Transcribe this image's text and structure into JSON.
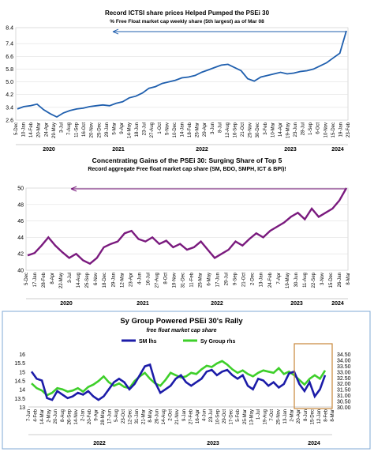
{
  "chart_data": [
    {
      "type": "line",
      "title": "Record ICTSI share prices Helped Pumped the PSEi 30",
      "subtitle": "% Free Float market cap weekly share (5th largest) as of Mar 08",
      "xlabel": "",
      "ylabel": "",
      "ylim": [
        2.6,
        8.4
      ],
      "yticks": [
        "2.6",
        "3.4",
        "4.2",
        "5.0",
        "5.8",
        "6.6",
        "7.4",
        "8.4"
      ],
      "x_ticks": [
        "5-Dec",
        "10-Jan",
        "14-Feb",
        "20-Mar",
        "24-Apr",
        "29-May",
        "3-Jul",
        "7-Aug",
        "11-Sep",
        "16-Oct",
        "20-Nov",
        "25-Dec",
        "29-Jan",
        "5-Mar",
        "9-Apr",
        "14-May",
        "18-Jun",
        "23-Jul",
        "27-Aug",
        "1-Oct",
        "5-Nov",
        "10-Dec",
        "14-Jan",
        "18-Feb",
        "25-Mar",
        "29-Apr",
        "3-Jun",
        "8-Jul",
        "12-Aug",
        "16-Sep",
        "21-Oct",
        "25-Nov",
        "30-Dec",
        "3-Feb",
        "10-Mar",
        "14-Apr",
        "19-May",
        "23-Jun",
        "28-Jul",
        "1-Sep",
        "6-Oct",
        "10-Nov",
        "15-Dec",
        "19-Jan",
        "23-Feb"
      ],
      "years": [
        "2020",
        "2021",
        "2022",
        "2023",
        "2024"
      ],
      "color": "#1f5fae",
      "values": [
        3.3,
        3.45,
        3.5,
        3.6,
        3.25,
        3.0,
        2.8,
        3.05,
        3.2,
        3.3,
        3.35,
        3.45,
        3.5,
        3.55,
        3.5,
        3.65,
        3.75,
        4.0,
        4.1,
        4.3,
        4.6,
        4.7,
        4.9,
        5.0,
        5.1,
        5.25,
        5.3,
        5.4,
        5.6,
        5.75,
        5.9,
        6.05,
        6.1,
        5.9,
        5.7,
        5.2,
        5.05,
        5.3,
        5.4,
        5.5,
        5.6,
        5.5,
        5.55,
        5.65,
        5.7,
        5.8,
        6.0,
        6.2,
        6.5,
        6.8,
        8.2
      ],
      "arrow": true
    },
    {
      "type": "line",
      "title": "Concentrating Gains of the PSEi 30: Surging Share of Top 5",
      "subtitle": "Record aggregate Free float market cap share (SM, BDO, SMPH, ICT & BPI)!",
      "xlabel": "",
      "ylabel": "",
      "ylim": [
        40,
        50
      ],
      "yticks": [
        "40",
        "42",
        "44",
        "46",
        "48",
        "50"
      ],
      "x_ticks": [
        "5-Dec",
        "17-Jan",
        "28-Feb",
        "8-Apr",
        "22-May",
        "3-Jul",
        "14-Aug",
        "25-Sep",
        "6-Nov",
        "18-Dec",
        "29-Jan",
        "12-Mar",
        "23-Apr",
        "4-Jun",
        "16-Jul",
        "27-Aug",
        "8-Oct",
        "19-Nov",
        "31-Dec",
        "11-Feb",
        "25-Mar",
        "6-May",
        "17-Jun",
        "29-Jul",
        "9-Sep",
        "21-Oct",
        "2-Dec",
        "13-Jan",
        "24-Feb",
        "7-Apr",
        "19-May",
        "30-Jun",
        "11-Aug",
        "22-Sep",
        "3-Nov",
        "15-Dec",
        "26-Jan",
        "8-Mar"
      ],
      "years": [
        "2020",
        "2021",
        "2022",
        "2023",
        "2024"
      ],
      "color": "#7a1a7e",
      "values": [
        41.8,
        42.1,
        43.0,
        44.0,
        43.0,
        42.2,
        41.5,
        42.0,
        41.2,
        40.8,
        41.5,
        42.8,
        43.2,
        43.5,
        44.5,
        44.8,
        43.8,
        43.5,
        44.0,
        43.2,
        43.6,
        42.8,
        43.2,
        42.5,
        42.8,
        43.5,
        42.5,
        41.5,
        42.0,
        42.5,
        43.5,
        43.0,
        43.8,
        44.5,
        44.0,
        44.8,
        45.3,
        45.8,
        46.5,
        47.0,
        46.2,
        47.5,
        46.5,
        47.0,
        47.5,
        48.5,
        50.0
      ],
      "arrow": true
    },
    {
      "type": "line",
      "title": "Sy Group Powered PSEi 30's Rally",
      "subtitle": "free float market cap share",
      "xlabel": "",
      "ylabel": "",
      "ylim": [
        13,
        16
      ],
      "yticks": [
        "13",
        "13.5",
        "14",
        "14.5",
        "15",
        "15.5",
        "16"
      ],
      "ylim_right": [
        30,
        34.5
      ],
      "yticks_right": [
        "30.00",
        "30.50",
        "31.00",
        "31.50",
        "32.00",
        "32.50",
        "33.00",
        "33.50",
        "34.00",
        "34.50"
      ],
      "x_ticks": [
        "7-Jun",
        "4-Feb",
        "14-Mar",
        "2-May",
        "20-Jun",
        "8-Aug",
        "26-Sep",
        "14-Nov",
        "2-Jan",
        "20-Feb",
        "9-Apr",
        "28-May",
        "17-Jun",
        "5-Aug",
        "23-Oct",
        "12-Dec",
        "31-Jan",
        "21-Mar",
        "8-May",
        "26-Jun",
        "14-Aug",
        "2-Oct",
        "21-Nov",
        "9-Jan",
        "27-Feb",
        "16-Apr",
        "4-Jun",
        "23-Jul",
        "10-Sep",
        "29-Oct",
        "17-Dec",
        "5-Feb",
        "25-Mar",
        "13-May",
        "1-Jul",
        "19-Aug",
        "7-Oct",
        "25-Nov",
        "13-Jan",
        "2-Mar",
        "20-Apr",
        "8-Jun",
        "15-Dec",
        "12-Jan",
        "8-Feb",
        "8-Mar"
      ],
      "years": [
        "2022",
        "2023",
        "2024"
      ],
      "series": [
        {
          "name": "SM lhs",
          "axis": "left",
          "color": "#1c1ca8",
          "values": [
            15.0,
            14.6,
            14.5,
            13.5,
            13.4,
            13.9,
            13.7,
            13.5,
            13.6,
            13.8,
            13.7,
            13.9,
            13.6,
            13.4,
            13.6,
            14.0,
            14.4,
            14.6,
            14.4,
            14.0,
            14.3,
            14.8,
            15.3,
            15.4,
            14.4,
            13.8,
            14.0,
            14.2,
            14.6,
            14.8,
            14.4,
            14.2,
            14.4,
            14.6,
            15.0,
            15.1,
            14.8,
            15.0,
            15.1,
            14.8,
            14.6,
            14.8,
            14.2,
            14.0,
            14.6,
            14.5,
            14.2,
            14.4,
            14.1,
            14.3,
            14.9,
            15.0,
            14.3,
            13.9,
            14.4,
            13.6,
            14.0,
            14.8
          ]
        },
        {
          "name": "Sy Group rhs",
          "axis": "right",
          "color": "#3ecf2a",
          "values": [
            32.0,
            31.6,
            31.4,
            31.0,
            31.2,
            31.6,
            31.5,
            31.3,
            31.4,
            31.6,
            31.3,
            31.7,
            31.9,
            32.2,
            32.6,
            32.1,
            31.8,
            32.0,
            31.7,
            31.6,
            32.2,
            32.6,
            32.9,
            32.4,
            32.0,
            31.8,
            32.3,
            32.9,
            32.7,
            32.5,
            32.6,
            32.9,
            32.8,
            33.2,
            33.5,
            33.4,
            33.7,
            33.9,
            33.6,
            33.2,
            32.9,
            33.1,
            32.8,
            32.6,
            32.9,
            33.1,
            33.0,
            32.9,
            33.3,
            32.8,
            33.0,
            32.7,
            32.3,
            31.9,
            32.4,
            32.7,
            32.4,
            33.1
          ]
        }
      ]
    }
  ]
}
